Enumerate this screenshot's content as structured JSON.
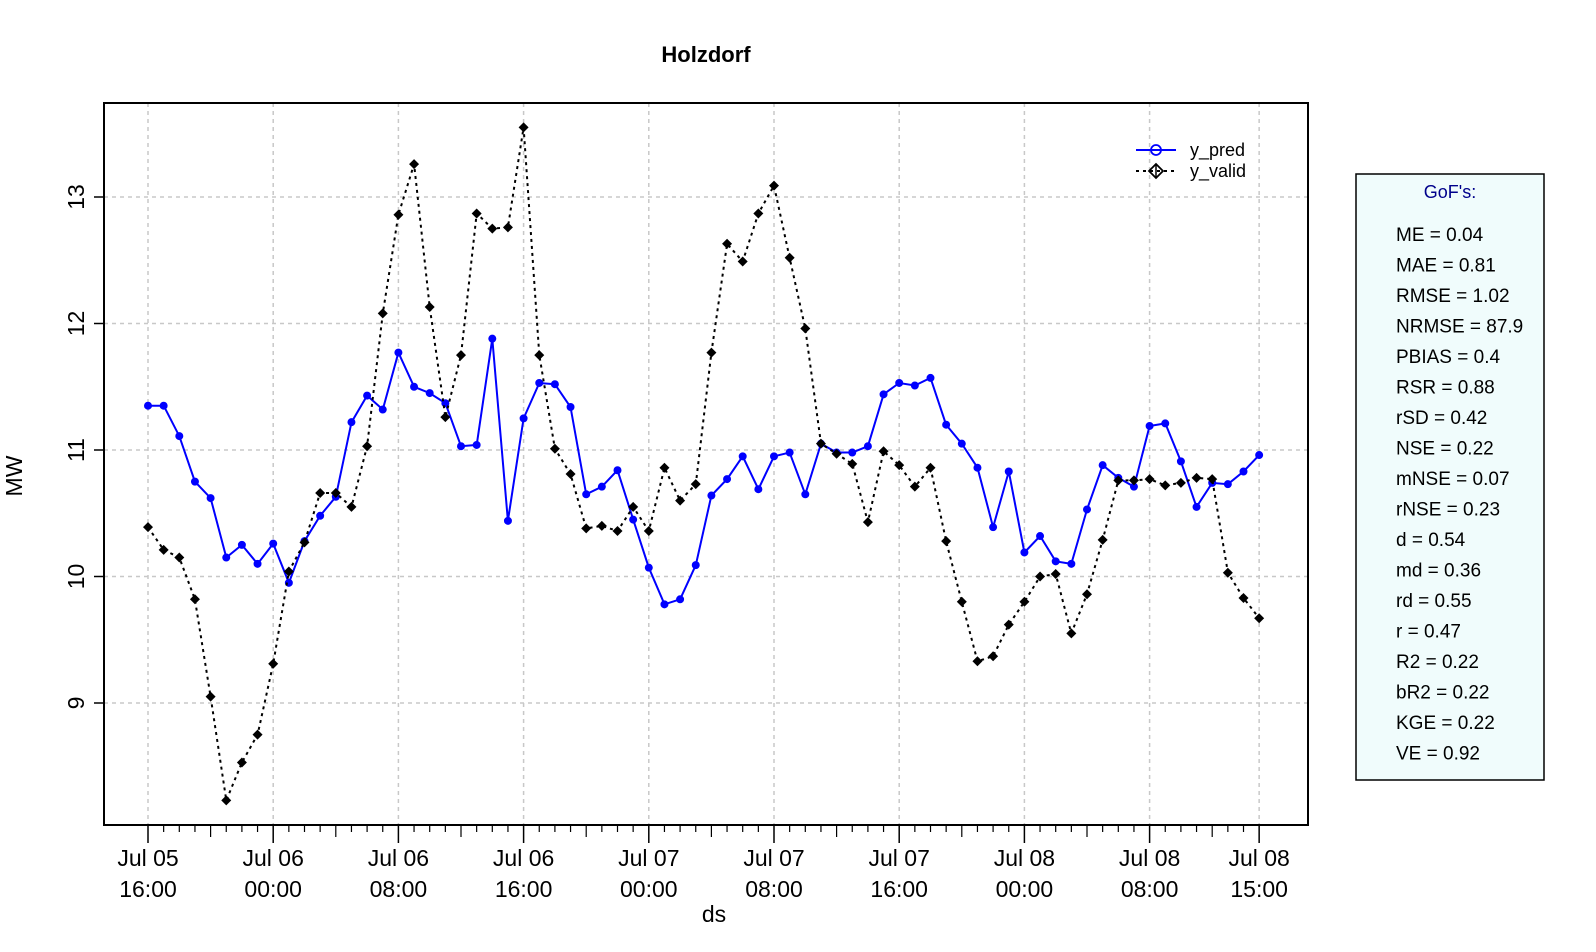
{
  "chart_data": {
    "type": "line",
    "title": "Holzdorf",
    "xlabel": "ds",
    "ylabel": "MW",
    "ylim": [
      8.0,
      13.6
    ],
    "yticks": [
      9,
      10,
      11,
      12,
      13
    ],
    "grid": true,
    "legend_position": "top-right",
    "x_tick_labels": [
      {
        "line1": "Jul 05",
        "line2": "16:00"
      },
      {
        "line1": "Jul 06",
        "line2": "00:00"
      },
      {
        "line1": "Jul 06",
        "line2": "08:00"
      },
      {
        "line1": "Jul 06",
        "line2": "16:00"
      },
      {
        "line1": "Jul 07",
        "line2": "00:00"
      },
      {
        "line1": "Jul 07",
        "line2": "08:00"
      },
      {
        "line1": "Jul 07",
        "line2": "16:00"
      },
      {
        "line1": "Jul 08",
        "line2": "00:00"
      },
      {
        "line1": "Jul 08",
        "line2": "08:00"
      },
      {
        "line1": "Jul 08",
        "line2": "15:00"
      }
    ],
    "x_start": "Jul 05 16:00",
    "x_step": "1 hour",
    "series": [
      {
        "name": "y_pred",
        "color": "#0000ff",
        "line": "solid",
        "marker": "circle",
        "values": [
          11.35,
          11.35,
          11.11,
          10.75,
          10.62,
          10.15,
          10.25,
          10.1,
          10.26,
          9.95,
          10.28,
          10.48,
          10.63,
          11.22,
          11.43,
          11.32,
          11.77,
          11.5,
          11.45,
          11.37,
          11.03,
          11.04,
          11.88,
          10.44,
          11.25,
          11.53,
          11.52,
          11.34,
          10.65,
          10.71,
          10.84,
          10.45,
          10.07,
          9.78,
          9.82,
          10.09,
          10.64,
          10.77,
          10.95,
          10.69,
          10.95,
          10.98,
          10.65,
          11.05,
          10.98,
          10.98,
          11.03,
          11.44,
          11.53,
          11.51,
          11.57,
          11.2,
          11.05,
          10.86,
          10.39,
          10.83,
          10.19,
          10.32,
          10.12,
          10.1,
          10.53,
          10.88,
          10.78,
          10.71,
          11.19,
          11.21,
          10.91,
          10.55,
          10.74,
          10.73,
          10.83,
          10.96
        ]
      },
      {
        "name": "y_valid",
        "color": "#000000",
        "line": "dotted",
        "marker": "diamond",
        "values": [
          10.39,
          10.21,
          10.15,
          9.82,
          9.05,
          8.23,
          8.53,
          8.75,
          9.31,
          10.04,
          10.27,
          10.66,
          10.66,
          10.55,
          11.03,
          12.08,
          12.86,
          13.26,
          12.13,
          11.26,
          11.75,
          12.87,
          12.75,
          12.76,
          13.55,
          11.75,
          11.01,
          10.81,
          10.38,
          10.4,
          10.36,
          10.55,
          10.36,
          10.86,
          10.6,
          10.73,
          11.77,
          12.63,
          12.49,
          12.87,
          13.09,
          12.52,
          11.96,
          11.05,
          10.97,
          10.89,
          10.43,
          10.99,
          10.88,
          10.71,
          10.86,
          10.28,
          9.8,
          9.33,
          9.37,
          9.62,
          9.8,
          10.0,
          10.02,
          9.55,
          9.86,
          10.29,
          10.76,
          10.76,
          10.77,
          10.72,
          10.74,
          10.78,
          10.77,
          10.03,
          9.83,
          9.67
        ]
      }
    ]
  },
  "gof": {
    "title": "GoF's:",
    "items": [
      "ME = 0.04",
      "MAE = 0.81",
      "RMSE = 1.02",
      "NRMSE = 87.9",
      "PBIAS = 0.4",
      "RSR = 0.88",
      "rSD = 0.42",
      "NSE = 0.22",
      "mNSE = 0.07",
      "rNSE = 0.23",
      "d = 0.54",
      "md = 0.36",
      "rd = 0.55",
      "r = 0.47",
      "R2 = 0.22",
      "bR2 = 0.22",
      "KGE = 0.22",
      "VE = 0.92"
    ],
    "background_color": "#f0fcfc"
  }
}
